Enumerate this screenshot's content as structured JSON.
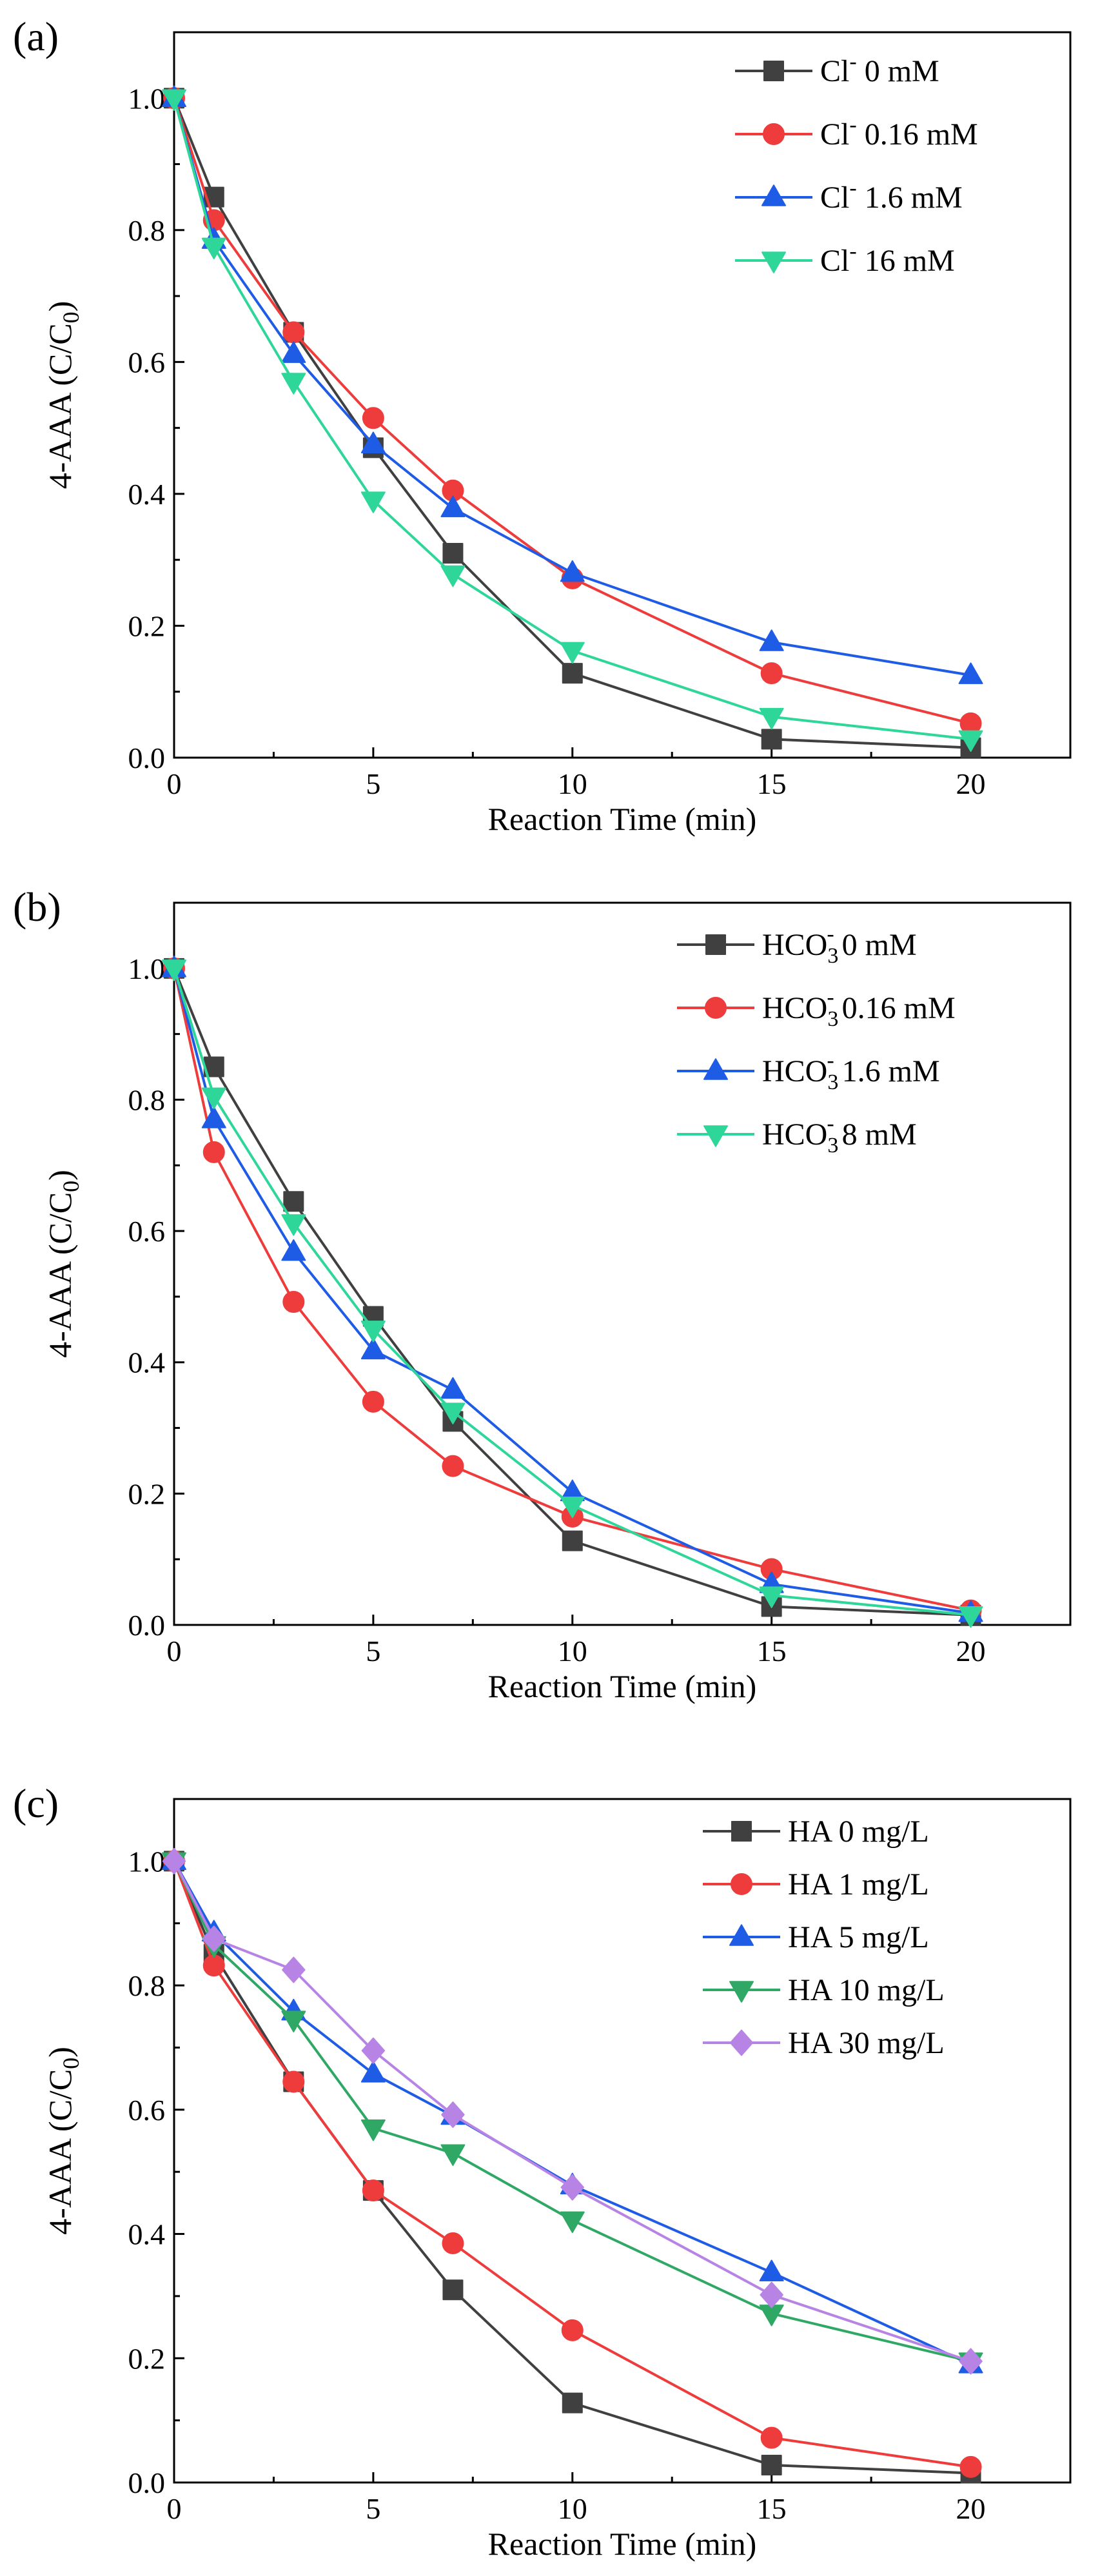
{
  "chart_data": [
    {
      "type": "line",
      "panel_label": "(a)",
      "xlabel": "Reaction Time (min)",
      "ylabel_main": "4-AAA (C/C",
      "ylabel_sub": "0",
      "ylabel_tail": ")",
      "xlim": [
        0,
        22.5
      ],
      "ylim": [
        0,
        1.1
      ],
      "xticks": [
        0,
        5,
        10,
        15,
        20
      ],
      "xtick_labels": [
        "0",
        "5",
        "10",
        "15",
        "20"
      ],
      "yticks": [
        0.0,
        0.2,
        0.4,
        0.6,
        0.8,
        1.0
      ],
      "ytick_labels": [
        "0.0",
        "0.2",
        "0.4",
        "0.6",
        "0.8",
        "1.0"
      ],
      "legend_position": "top-right",
      "x": [
        0,
        1,
        3,
        5,
        7,
        10,
        15,
        20
      ],
      "series": [
        {
          "legend_main": "Cl",
          "legend_sup": "-",
          "legend_rest": " 0 mM",
          "color": "#404040",
          "marker": "square",
          "values": [
            1.0,
            0.85,
            0.645,
            0.47,
            0.31,
            0.128,
            0.028,
            0.015
          ]
        },
        {
          "legend_main": "Cl",
          "legend_sup": "-",
          "legend_rest": " 0.16 mM",
          "color": "#ee3b3b",
          "marker": "circle",
          "values": [
            1.0,
            0.815,
            0.645,
            0.515,
            0.405,
            0.272,
            0.128,
            0.052
          ]
        },
        {
          "legend_main": "Cl",
          "legend_sup": "-",
          "legend_rest": " 1.6 mM",
          "color": "#1f5ce6",
          "marker": "triangle-up",
          "values": [
            1.0,
            0.785,
            0.612,
            0.475,
            0.378,
            0.28,
            0.175,
            0.125
          ]
        },
        {
          "legend_main": "Cl",
          "legend_sup": "-",
          "legend_rest": " 16 mM",
          "color": "#2fd69a",
          "marker": "triangle-down",
          "values": [
            1.0,
            0.775,
            0.57,
            0.39,
            0.278,
            0.162,
            0.062,
            0.028
          ]
        }
      ]
    },
    {
      "type": "line",
      "panel_label": "(b)",
      "xlabel": "Reaction Time (min)",
      "ylabel_main": "4-AAA (C/C",
      "ylabel_sub": "0",
      "ylabel_tail": ")",
      "xlim": [
        0,
        22.5
      ],
      "ylim": [
        0,
        1.1
      ],
      "xticks": [
        0,
        5,
        10,
        15,
        20
      ],
      "xtick_labels": [
        "0",
        "5",
        "10",
        "15",
        "20"
      ],
      "yticks": [
        0.0,
        0.2,
        0.4,
        0.6,
        0.8,
        1.0
      ],
      "ytick_labels": [
        "0.0",
        "0.2",
        "0.4",
        "0.6",
        "0.8",
        "1.0"
      ],
      "legend_position": "top-right",
      "x": [
        0,
        1,
        3,
        5,
        7,
        10,
        15,
        20
      ],
      "series": [
        {
          "legend_main": "HCO",
          "legend_sub": "3",
          "legend_sup": "-",
          "legend_rest": " 0 mM",
          "color": "#404040",
          "marker": "square",
          "values": [
            1.0,
            0.85,
            0.645,
            0.47,
            0.31,
            0.128,
            0.028,
            0.015
          ]
        },
        {
          "legend_main": "HCO",
          "legend_sub": "3",
          "legend_sup": "-",
          "legend_rest": "  0.16 mM",
          "color": "#ee3b3b",
          "marker": "circle",
          "values": [
            1.0,
            0.72,
            0.492,
            0.34,
            0.242,
            0.165,
            0.085,
            0.022
          ]
        },
        {
          "legend_main": "HCO",
          "legend_sub": "3",
          "legend_sup": "-",
          "legend_rest": " 1.6 mM",
          "color": "#1f5ce6",
          "marker": "triangle-up",
          "values": [
            1.0,
            0.77,
            0.568,
            0.418,
            0.358,
            0.202,
            0.062,
            0.018
          ]
        },
        {
          "legend_main": "HCO",
          "legend_sub": "3",
          "legend_sup": "-",
          "legend_rest": " 8 mM",
          "color": "#2fd69a",
          "marker": "triangle-down",
          "values": [
            1.0,
            0.805,
            0.612,
            0.45,
            0.325,
            0.182,
            0.045,
            0.015
          ]
        }
      ]
    },
    {
      "type": "line",
      "panel_label": "(c)",
      "xlabel": "Reaction Time (min)",
      "ylabel_main": "4-AAA (C/C",
      "ylabel_sub": "0",
      "ylabel_tail": ")",
      "xlim": [
        0,
        22.5
      ],
      "ylim": [
        0,
        1.1
      ],
      "xticks": [
        0,
        5,
        10,
        15,
        20
      ],
      "xtick_labels": [
        "0",
        "5",
        "10",
        "15",
        "20"
      ],
      "yticks": [
        0.0,
        0.2,
        0.4,
        0.6,
        0.8,
        1.0
      ],
      "ytick_labels": [
        "0.0",
        "0.2",
        "0.4",
        "0.6",
        "0.8",
        "1.0"
      ],
      "legend_position": "top-right",
      "x": [
        0,
        1,
        3,
        5,
        7,
        10,
        15,
        20
      ],
      "series": [
        {
          "legend_main": "HA 0 mg/L",
          "color": "#404040",
          "marker": "square",
          "values": [
            1.0,
            0.85,
            0.645,
            0.47,
            0.31,
            0.128,
            0.028,
            0.015
          ]
        },
        {
          "legend_main": "HA 1 mg/L",
          "color": "#ee3b3b",
          "marker": "circle",
          "values": [
            1.0,
            0.832,
            0.645,
            0.47,
            0.385,
            0.245,
            0.072,
            0.025
          ]
        },
        {
          "legend_main": "HA 5 mg/L",
          "color": "#1f5ce6",
          "marker": "triangle-up",
          "values": [
            1.0,
            0.885,
            0.758,
            0.658,
            0.59,
            0.478,
            0.338,
            0.19
          ]
        },
        {
          "legend_main": "HA 10 mg/L",
          "color": "#2fa865",
          "marker": "triangle-down",
          "values": [
            1.0,
            0.865,
            0.745,
            0.57,
            0.53,
            0.422,
            0.272,
            0.195
          ]
        },
        {
          "legend_main": "HA 30 mg/L",
          "color": "#b784e6",
          "marker": "diamond",
          "values": [
            1.0,
            0.875,
            0.825,
            0.695,
            0.592,
            0.475,
            0.302,
            0.195
          ]
        }
      ]
    }
  ]
}
